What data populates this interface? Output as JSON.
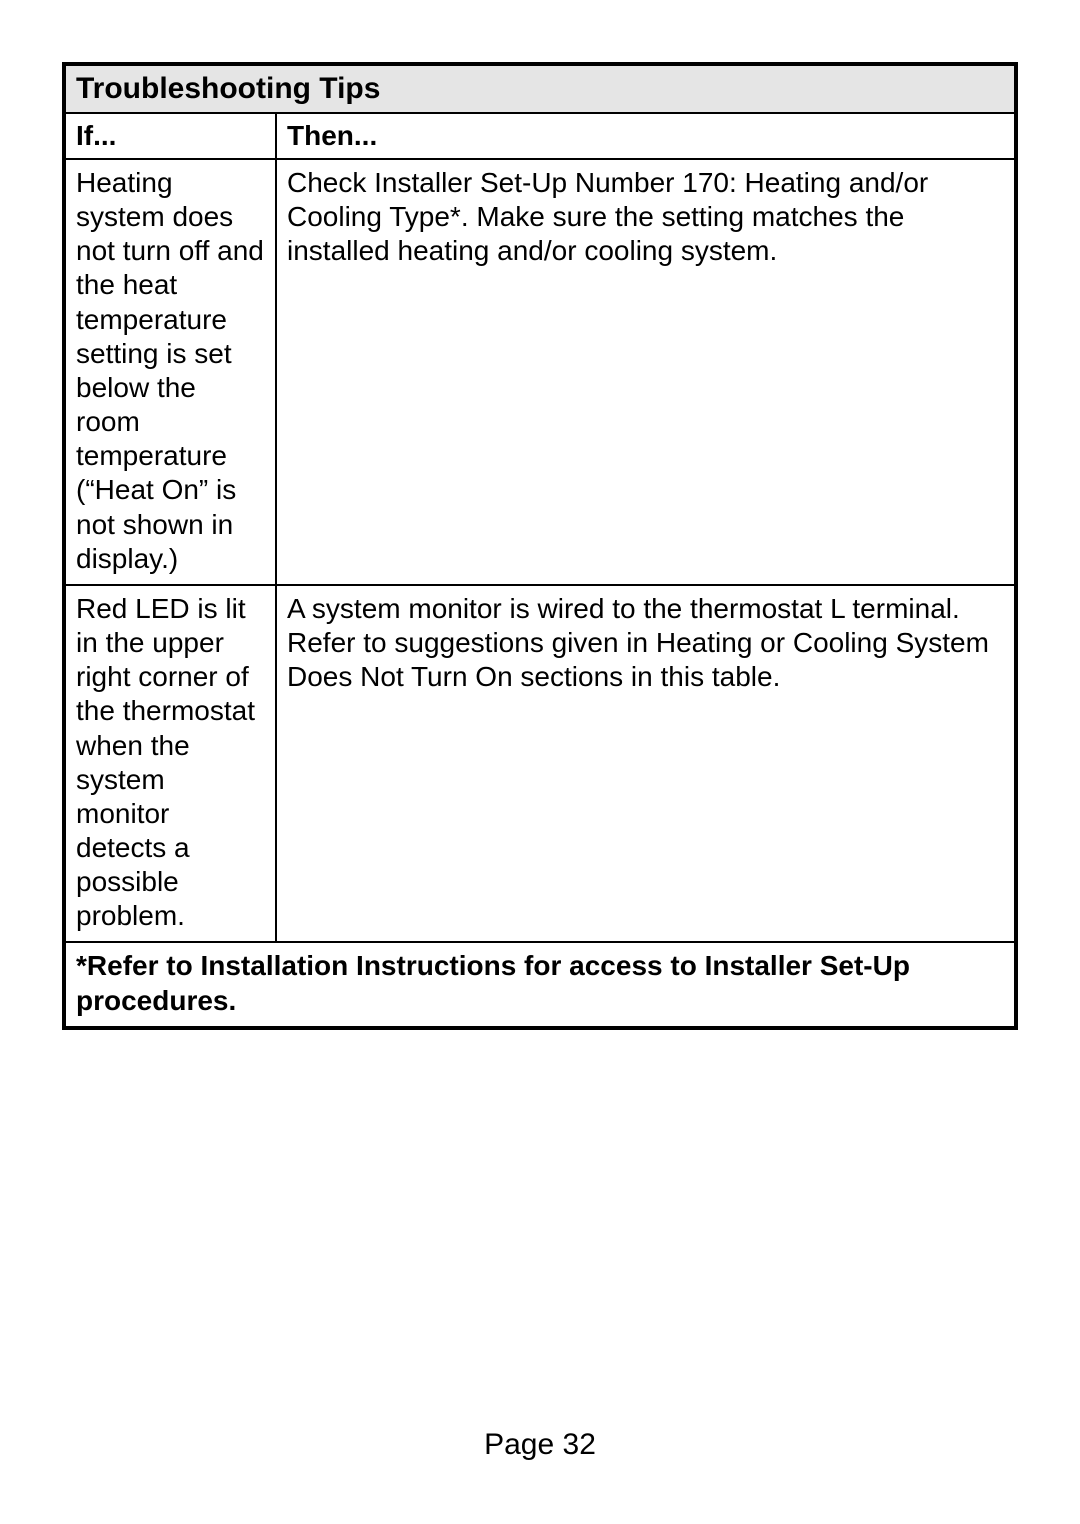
{
  "table": {
    "title": "Troubleshooting Tips",
    "columns": [
      "If...",
      "Then..."
    ],
    "rows": [
      {
        "if": "Heating system does not turn off and the heat temperature setting is set below the room temperature (“Heat On” is not shown in display.)",
        "then": "Check Installer Set-Up Number 170: Heating and/or Cooling Type*. Make sure the setting matches the installed heating and/or cooling system."
      },
      {
        "if": "Red LED is lit in the upper right corner of the thermostat when the system monitor detects a possible problem.",
        "then": "A system monitor is wired to the thermostat L terminal. Refer to suggestions given in Heating or Cooling System Does Not Turn On sections in this table."
      }
    ],
    "footer": "*Refer to Installation Instructions for access to Installer Set-Up procedures."
  },
  "page_label": "Page 32"
}
